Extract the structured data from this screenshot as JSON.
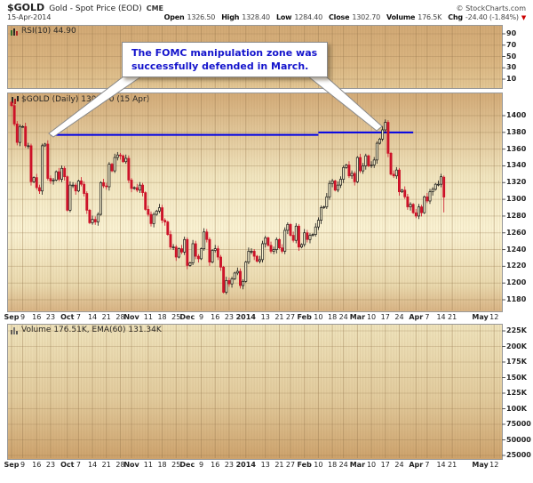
{
  "header": {
    "symbol": "$GOLD",
    "title": "Gold - Spot Price (EOD)",
    "exchange": "CME",
    "credit": "© StockCharts.com",
    "date": "15-Apr-2014",
    "quote": [
      {
        "label": "Open",
        "value": "1326.50"
      },
      {
        "label": "High",
        "value": "1328.40"
      },
      {
        "label": "Low",
        "value": "1284.40"
      },
      {
        "label": "Close",
        "value": "1302.70"
      },
      {
        "label": "Volume",
        "value": "176.5K"
      },
      {
        "label": "Chg",
        "value": "-24.40 (-1.84%)"
      }
    ],
    "chg_arrow": "▼"
  },
  "rsi_panel": {
    "label": "RSI(10) 44.90"
  },
  "main_panel": {
    "label": "$GOLD (Daily) 1302.70 (15 Apr)"
  },
  "volume_panel": {
    "label": "Volume 176.51K, EMA(60) 131.34K"
  },
  "annotation": {
    "line1": "The FOMC manipulation zone was",
    "line2": "successfully defended in March."
  },
  "colors": {
    "candle_up": "#111111",
    "candle_up_fill": "#f6eecb",
    "candle_down": "#cc1228",
    "resistance_line": "#0000e6",
    "annotation_text": "#1414cc",
    "grid": "#8f7146",
    "axis_text": "#222222",
    "chg_arrow": "#cc0000"
  },
  "chart_data": {
    "type": "candlestick",
    "title": "$GOLD (Daily)",
    "subtitle": "Gold - Spot Price (EOD) CME",
    "date_range": "2013-09-03 to 2014-04-15",
    "timeframe": "daily",
    "ylim": [
      1166,
      1427
    ],
    "y_ticks": [
      1180,
      1200,
      1220,
      1240,
      1260,
      1280,
      1300,
      1320,
      1340,
      1360,
      1380,
      1400
    ],
    "first_open": 1416,
    "last_ohlc": {
      "open": 1326.5,
      "high": 1328.4,
      "low": 1284.4,
      "close": 1302.7
    },
    "closes": [
      1412,
      1390,
      1368,
      1387,
      1387,
      1364,
      1364,
      1321,
      1326,
      1314,
      1310,
      1364,
      1366,
      1325,
      1322,
      1323,
      1333,
      1324,
      1337,
      1327,
      1287,
      1317,
      1317,
      1310,
      1322,
      1318,
      1307,
      1287,
      1272,
      1276,
      1273,
      1282,
      1320,
      1316,
      1315,
      1342,
      1334,
      1350,
      1353,
      1352,
      1345,
      1349,
      1323,
      1313,
      1314,
      1311,
      1317,
      1308,
      1288,
      1282,
      1271,
      1282,
      1286,
      1290,
      1275,
      1273,
      1258,
      1243,
      1243,
      1231,
      1241,
      1237,
      1252,
      1221,
      1224,
      1247,
      1232,
      1229,
      1241,
      1261,
      1252,
      1225,
      1239,
      1241,
      1231,
      1219,
      1189,
      1203,
      1199,
      1205,
      1212,
      1214,
      1197,
      1202,
      1225,
      1238,
      1238,
      1232,
      1226,
      1228,
      1247,
      1254,
      1245,
      1238,
      1240,
      1252,
      1242,
      1238,
      1263,
      1270,
      1257,
      1251,
      1268,
      1243,
      1246,
      1260,
      1252,
      1257,
      1258,
      1267,
      1275,
      1290,
      1291,
      1303,
      1319,
      1322,
      1311,
      1317,
      1324,
      1338,
      1341,
      1328,
      1331,
      1321,
      1350,
      1334,
      1340,
      1352,
      1340,
      1341,
      1347,
      1367,
      1372,
      1383,
      1392,
      1355,
      1330,
      1328,
      1335,
      1309,
      1311,
      1303,
      1291,
      1294,
      1284,
      1280,
      1291,
      1284,
      1303,
      1298,
      1309,
      1312,
      1318,
      1318,
      1327,
      1302.7
    ],
    "x_ticks": [
      {
        "l": "Sep",
        "b": 1,
        "i": 0
      },
      {
        "l": "9",
        "i": 4
      },
      {
        "l": "16",
        "i": 9
      },
      {
        "l": "23",
        "i": 14
      },
      {
        "l": "Oct",
        "b": 1,
        "i": 20
      },
      {
        "l": "7",
        "i": 24
      },
      {
        "l": "14",
        "i": 29
      },
      {
        "l": "21",
        "i": 34
      },
      {
        "l": "28",
        "i": 39
      },
      {
        "l": "Nov",
        "b": 1,
        "i": 43
      },
      {
        "l": "11",
        "i": 49
      },
      {
        "l": "18",
        "i": 54
      },
      {
        "l": "25",
        "i": 59
      },
      {
        "l": "Dec",
        "b": 1,
        "i": 63
      },
      {
        "l": "9",
        "i": 68
      },
      {
        "l": "16",
        "i": 73
      },
      {
        "l": "23",
        "i": 78
      },
      {
        "l": "2014",
        "b": 1,
        "i": 84
      },
      {
        "l": "13",
        "i": 91
      },
      {
        "l": "21",
        "i": 96
      },
      {
        "l": "27",
        "i": 100
      },
      {
        "l": "Feb",
        "b": 1,
        "i": 105
      },
      {
        "l": "10",
        "i": 110
      },
      {
        "l": "18",
        "i": 115
      },
      {
        "l": "24",
        "i": 119
      },
      {
        "l": "Mar",
        "b": 1,
        "i": 124
      },
      {
        "l": "10",
        "i": 129
      },
      {
        "l": "17",
        "i": 134
      },
      {
        "l": "24",
        "i": 139
      },
      {
        "l": "Apr",
        "b": 1,
        "i": 145
      },
      {
        "l": "7",
        "i": 149
      },
      {
        "l": "14",
        "i": 154
      },
      {
        "l": "21",
        "i": 158
      },
      {
        "l": "May",
        "b": 1,
        "i": 168
      },
      {
        "l": "12",
        "i": 173
      }
    ],
    "resistance_lines": [
      {
        "price": 1377,
        "i0": 14,
        "i1": 110
      },
      {
        "price": 1380,
        "i0": 110,
        "i1": 144
      }
    ],
    "rsi": {
      "period": 10,
      "value": 44.9,
      "ticks": [
        10,
        30,
        50,
        70,
        90
      ]
    },
    "volume": {
      "current": "176.51K",
      "ema60": "131.34K",
      "tick_labels": [
        "225K",
        "200K",
        "175K",
        "150K",
        "125K",
        "100K",
        "75000",
        "50000",
        "25000"
      ],
      "tick_values": [
        225000,
        200000,
        175000,
        150000,
        125000,
        100000,
        75000,
        50000,
        25000
      ]
    }
  }
}
